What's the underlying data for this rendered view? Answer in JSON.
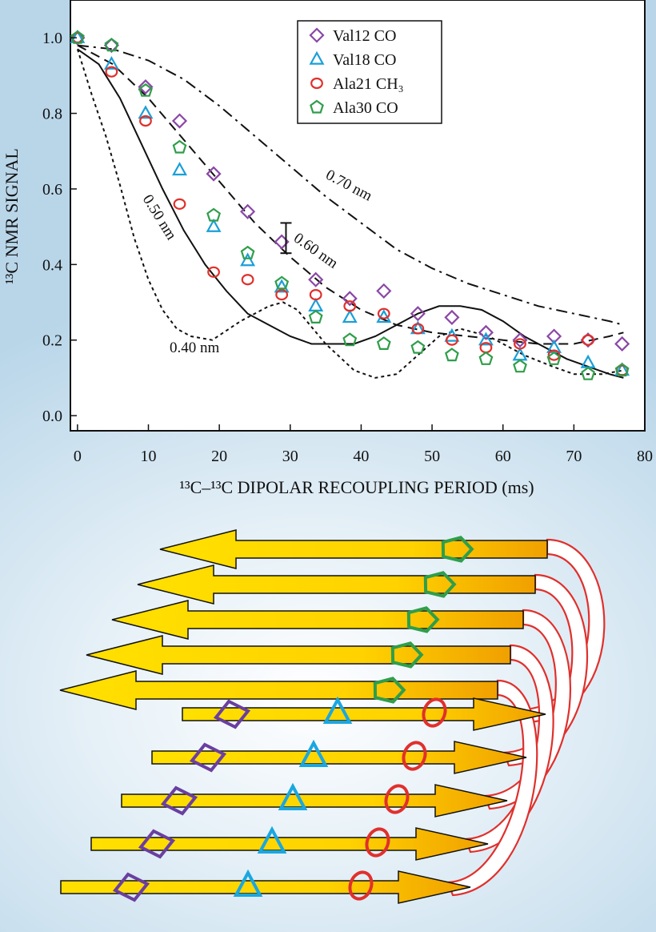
{
  "chart_data": {
    "type": "scatter",
    "xlabel": "¹³C–¹³C DIPOLAR RECOUPLING PERIOD (ms)",
    "ylabel": "¹³C NMR SIGNAL",
    "xlim": [
      -1,
      80
    ],
    "ylim": [
      -0.04,
      1.1
    ],
    "x_ticks": [
      0,
      10,
      20,
      30,
      40,
      50,
      60,
      70,
      80
    ],
    "y_ticks": [
      0.0,
      0.2,
      0.4,
      0.6,
      0.8,
      1.0
    ],
    "legend_position": "top-center",
    "series": [
      {
        "name": "Val12 CO",
        "marker": "diamond",
        "color": "#8a47a6",
        "x": [
          0,
          4.8,
          9.6,
          14.4,
          19.2,
          24,
          28.8,
          33.6,
          38.4,
          43.2,
          48,
          52.8,
          57.6,
          62.4,
          67.2,
          72,
          76.8
        ],
        "y": [
          1.0,
          0.98,
          0.87,
          0.78,
          0.64,
          0.54,
          0.46,
          0.36,
          0.31,
          0.33,
          0.27,
          0.26,
          0.22,
          0.2,
          0.21,
          0.2,
          0.19
        ]
      },
      {
        "name": "Val18 CO",
        "marker": "triangle",
        "color": "#1a9fd8",
        "x": [
          0,
          4.8,
          9.6,
          14.4,
          19.2,
          24,
          28.8,
          33.6,
          38.4,
          43.2,
          48,
          52.8,
          57.6,
          62.4,
          67.2,
          72,
          76.8
        ],
        "y": [
          1.0,
          0.93,
          0.8,
          0.65,
          0.5,
          0.41,
          0.34,
          0.29,
          0.26,
          0.26,
          0.23,
          0.21,
          0.2,
          0.16,
          0.18,
          0.14,
          0.12
        ]
      },
      {
        "name": "Ala21 CH₃",
        "marker": "circle",
        "color": "#e0302c",
        "x": [
          0,
          4.8,
          9.6,
          14.4,
          19.2,
          24,
          28.8,
          33.6,
          38.4,
          43.2,
          48,
          52.8,
          57.6,
          62.4,
          67.2,
          72,
          76.8
        ],
        "y": [
          1.0,
          0.91,
          0.78,
          0.56,
          0.38,
          0.36,
          0.32,
          0.32,
          0.29,
          0.27,
          0.23,
          0.2,
          0.18,
          0.19,
          0.16,
          0.2,
          0.12
        ]
      },
      {
        "name": "Ala30 CO",
        "marker": "pentagon",
        "color": "#2f9e4a",
        "x": [
          0,
          4.8,
          9.6,
          14.4,
          19.2,
          24,
          28.8,
          33.6,
          38.4,
          43.2,
          48,
          52.8,
          57.6,
          62.4,
          67.2,
          72,
          76.8
        ],
        "y": [
          1.0,
          0.98,
          0.86,
          0.71,
          0.53,
          0.43,
          0.35,
          0.26,
          0.2,
          0.19,
          0.18,
          0.16,
          0.15,
          0.13,
          0.15,
          0.11,
          0.12
        ]
      }
    ],
    "simulation_curves": [
      {
        "label": "0.40 nm",
        "style": "dotted",
        "x": [
          0,
          2,
          4,
          6,
          8,
          10,
          12,
          14,
          16,
          19,
          23,
          27,
          29,
          31,
          35,
          39,
          42,
          45,
          48,
          51,
          54,
          58,
          63,
          67,
          70,
          74,
          77
        ],
        "y": [
          0.97,
          0.85,
          0.74,
          0.61,
          0.47,
          0.36,
          0.28,
          0.23,
          0.21,
          0.2,
          0.25,
          0.29,
          0.3,
          0.28,
          0.19,
          0.12,
          0.1,
          0.11,
          0.16,
          0.21,
          0.23,
          0.21,
          0.16,
          0.13,
          0.11,
          0.11,
          0.12
        ]
      },
      {
        "label": "0.50 nm",
        "style": "solid",
        "x": [
          0,
          3,
          6,
          9,
          12,
          15,
          18,
          21,
          24,
          27,
          30,
          33,
          36,
          39,
          42,
          45,
          48,
          51,
          54,
          57,
          60,
          63,
          66,
          69,
          72,
          75,
          77
        ],
        "y": [
          0.97,
          0.93,
          0.84,
          0.72,
          0.6,
          0.49,
          0.4,
          0.33,
          0.27,
          0.24,
          0.21,
          0.19,
          0.19,
          0.19,
          0.21,
          0.24,
          0.27,
          0.29,
          0.29,
          0.28,
          0.25,
          0.21,
          0.18,
          0.15,
          0.13,
          0.11,
          0.1
        ]
      },
      {
        "label": "0.60 nm",
        "style": "dashed",
        "x": [
          0,
          5,
          10,
          15,
          20,
          25,
          30,
          35,
          40,
          45,
          50,
          55,
          60,
          65,
          70,
          75,
          77
        ],
        "y": [
          0.98,
          0.93,
          0.84,
          0.73,
          0.62,
          0.51,
          0.42,
          0.34,
          0.28,
          0.24,
          0.22,
          0.21,
          0.2,
          0.19,
          0.19,
          0.21,
          0.22
        ]
      },
      {
        "label": "0.70 nm",
        "style": "dashdot",
        "x": [
          0,
          5,
          10,
          15,
          20,
          25,
          30,
          35,
          40,
          45,
          50,
          55,
          60,
          65,
          70,
          75,
          77
        ],
        "y": [
          0.98,
          0.97,
          0.94,
          0.89,
          0.82,
          0.74,
          0.66,
          0.58,
          0.51,
          0.44,
          0.39,
          0.35,
          0.32,
          0.29,
          0.27,
          0.25,
          0.24
        ]
      }
    ],
    "error_bar": {
      "x": 29.4,
      "y": 0.47,
      "low": 0.43,
      "high": 0.51
    }
  },
  "diagram": {
    "strand_color": "#ffd200",
    "strand_color_dark": "#f0a400",
    "turn_color": "#e0302c",
    "marker_colors": {
      "val12": "#6a3fa0",
      "val18": "#1aa7e0",
      "ala21": "#e0302c",
      "ala30": "#2f9e4a"
    }
  }
}
